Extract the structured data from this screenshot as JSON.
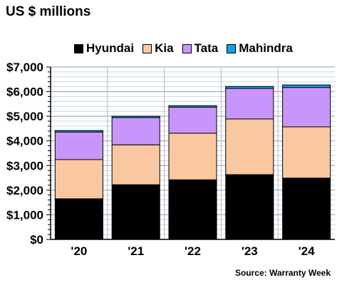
{
  "chart_data": {
    "type": "bar",
    "stacked": true,
    "title": "US $ millions",
    "source": "Source: Warranty Week",
    "categories": [
      "'20",
      "'21",
      "'22",
      "'23",
      "'24"
    ],
    "y_tick_labels": [
      "$0",
      "$1,000",
      "$2,000",
      "$3,000",
      "$4,000",
      "$5,000",
      "$6,000",
      "$7,000"
    ],
    "ylim": [
      0,
      7000
    ],
    "grid": true,
    "legend_position": "top",
    "series": [
      {
        "name": "Hyundai",
        "color": "#000000",
        "values": [
          1650,
          2220,
          2420,
          2630,
          2490
        ]
      },
      {
        "name": "Kia",
        "color": "#fac8a0",
        "values": [
          1590,
          1620,
          1890,
          2260,
          2080
        ]
      },
      {
        "name": "Tata",
        "color": "#c896fa",
        "values": [
          1120,
          1110,
          1060,
          1240,
          1600
        ]
      },
      {
        "name": "Mahindra",
        "color": "#14a0e6",
        "values": [
          60,
          50,
          60,
          80,
          100
        ]
      }
    ]
  }
}
